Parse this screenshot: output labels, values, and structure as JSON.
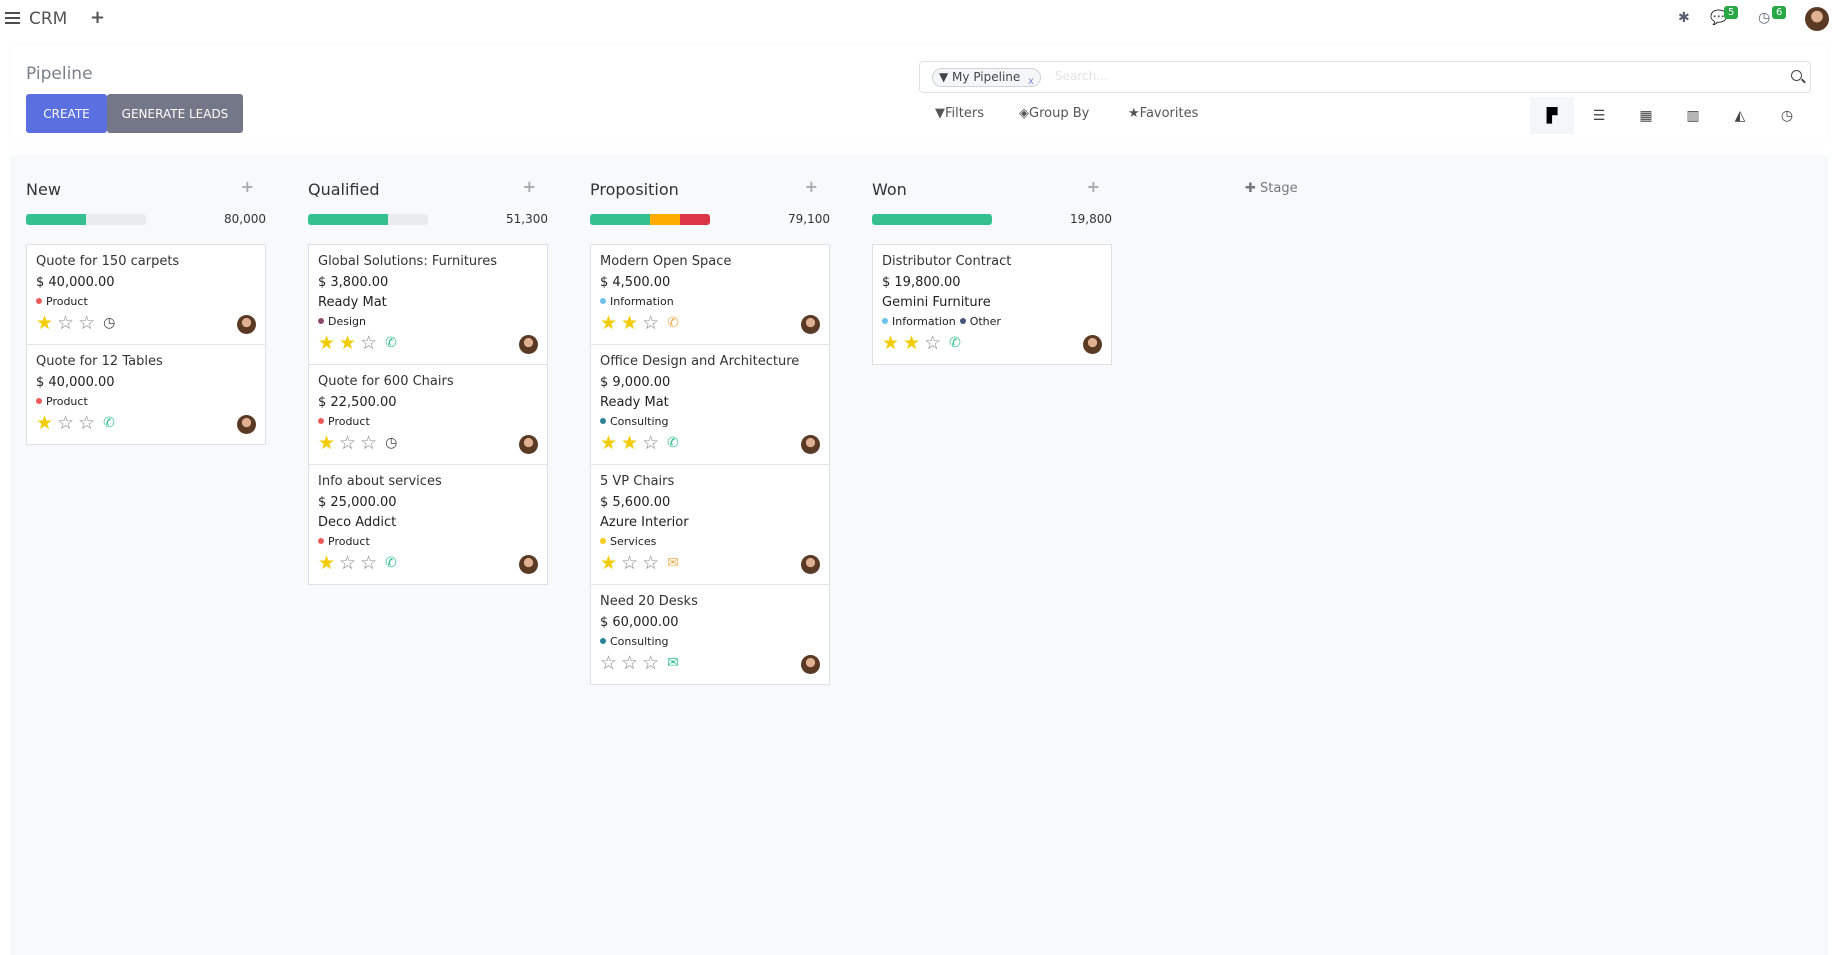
{
  "topbar": {
    "app": "CRM",
    "messages_count": "5",
    "activities_count": "6"
  },
  "control": {
    "title": "Pipeline",
    "create": "CREATE",
    "generate": "GENERATE LEADS",
    "facet": "My Pipeline",
    "search_placeholder": "Search...",
    "filters": "Filters",
    "group_by": "Group By",
    "favorites": "Favorites",
    "views": [
      "kanban",
      "list",
      "calendar",
      "pivot",
      "graph",
      "activity"
    ],
    "active_view": "kanban"
  },
  "colors": {
    "accent": "#5a6fe0",
    "secondary": "#737787",
    "green": "#35c18f",
    "orange": "#ffac00",
    "red": "#dc3545",
    "star": "#f3cc00"
  },
  "add_stage": "Stage",
  "columns": [
    {
      "title": "New",
      "total": "80,000",
      "progress": [
        {
          "pct": 50,
          "color": "#35c18f"
        }
      ],
      "cards": [
        {
          "title": "Quote for 150 carpets",
          "amount": "$ 40,000.00",
          "tags": [
            {
              "name": "Product",
              "color": "#f05a5a"
            }
          ],
          "stars": 1,
          "activity": "clock",
          "activity_color": "#444"
        },
        {
          "title": "Quote for 12 Tables",
          "amount": "$ 40,000.00",
          "tags": [
            {
              "name": "Product",
              "color": "#f05a5a"
            }
          ],
          "stars": 1,
          "activity": "phone",
          "activity_color": "#35c18f"
        }
      ]
    },
    {
      "title": "Qualified",
      "total": "51,300",
      "progress": [
        {
          "pct": 67,
          "color": "#35c18f"
        }
      ],
      "cards": [
        {
          "title": "Global Solutions: Furnitures",
          "amount": "$ 3,800.00",
          "partner": "Ready Mat",
          "tags": [
            {
              "name": "Design",
              "color": "#8e4a6e"
            }
          ],
          "stars": 2,
          "activity": "phone",
          "activity_color": "#35c18f"
        },
        {
          "title": "Quote for 600 Chairs",
          "amount": "$ 22,500.00",
          "tags": [
            {
              "name": "Product",
              "color": "#f05a5a"
            }
          ],
          "stars": 1,
          "activity": "clock",
          "activity_color": "#444"
        },
        {
          "title": "Info about services",
          "amount": "$ 25,000.00",
          "partner": "Deco Addict",
          "tags": [
            {
              "name": "Product",
              "color": "#f05a5a"
            }
          ],
          "stars": 1,
          "activity": "phone",
          "activity_color": "#35c18f"
        }
      ]
    },
    {
      "title": "Proposition",
      "total": "79,100",
      "progress": [
        {
          "pct": 50,
          "color": "#35c18f"
        },
        {
          "pct": 25,
          "color": "#ffac00"
        },
        {
          "pct": 25,
          "color": "#dc3545"
        }
      ],
      "cards": [
        {
          "title": "Modern Open Space",
          "amount": "$ 4,500.00",
          "tags": [
            {
              "name": "Information",
              "color": "#6cc1ed"
            }
          ],
          "stars": 2,
          "activity": "phone",
          "activity_color": "#f0ad4e"
        },
        {
          "title": "Office Design and Architecture",
          "amount": "$ 9,000.00",
          "partner": "Ready Mat",
          "tags": [
            {
              "name": "Consulting",
              "color": "#2c8397"
            }
          ],
          "stars": 2,
          "activity": "phone",
          "activity_color": "#35c18f"
        },
        {
          "title": "5 VP Chairs",
          "amount": "$ 5,600.00",
          "partner": "Azure Interior",
          "tags": [
            {
              "name": "Services",
              "color": "#f7cd1f"
            }
          ],
          "stars": 1,
          "activity": "envelope",
          "activity_color": "#f0ad4e"
        },
        {
          "title": "Need 20 Desks",
          "amount": "$ 60,000.00",
          "tags": [
            {
              "name": "Consulting",
              "color": "#2c8397"
            }
          ],
          "stars": 0,
          "activity": "envelope",
          "activity_color": "#35c18f"
        }
      ]
    },
    {
      "title": "Won",
      "total": "19,800",
      "progress": [
        {
          "pct": 100,
          "color": "#35c18f"
        }
      ],
      "cards": [
        {
          "title": "Distributor Contract",
          "amount": "$ 19,800.00",
          "partner": "Gemini Furniture",
          "tags": [
            {
              "name": "Information",
              "color": "#6cc1ed"
            },
            {
              "name": "Other",
              "color": "#475577"
            }
          ],
          "stars": 2,
          "activity": "phone",
          "activity_color": "#35c18f"
        }
      ]
    }
  ]
}
